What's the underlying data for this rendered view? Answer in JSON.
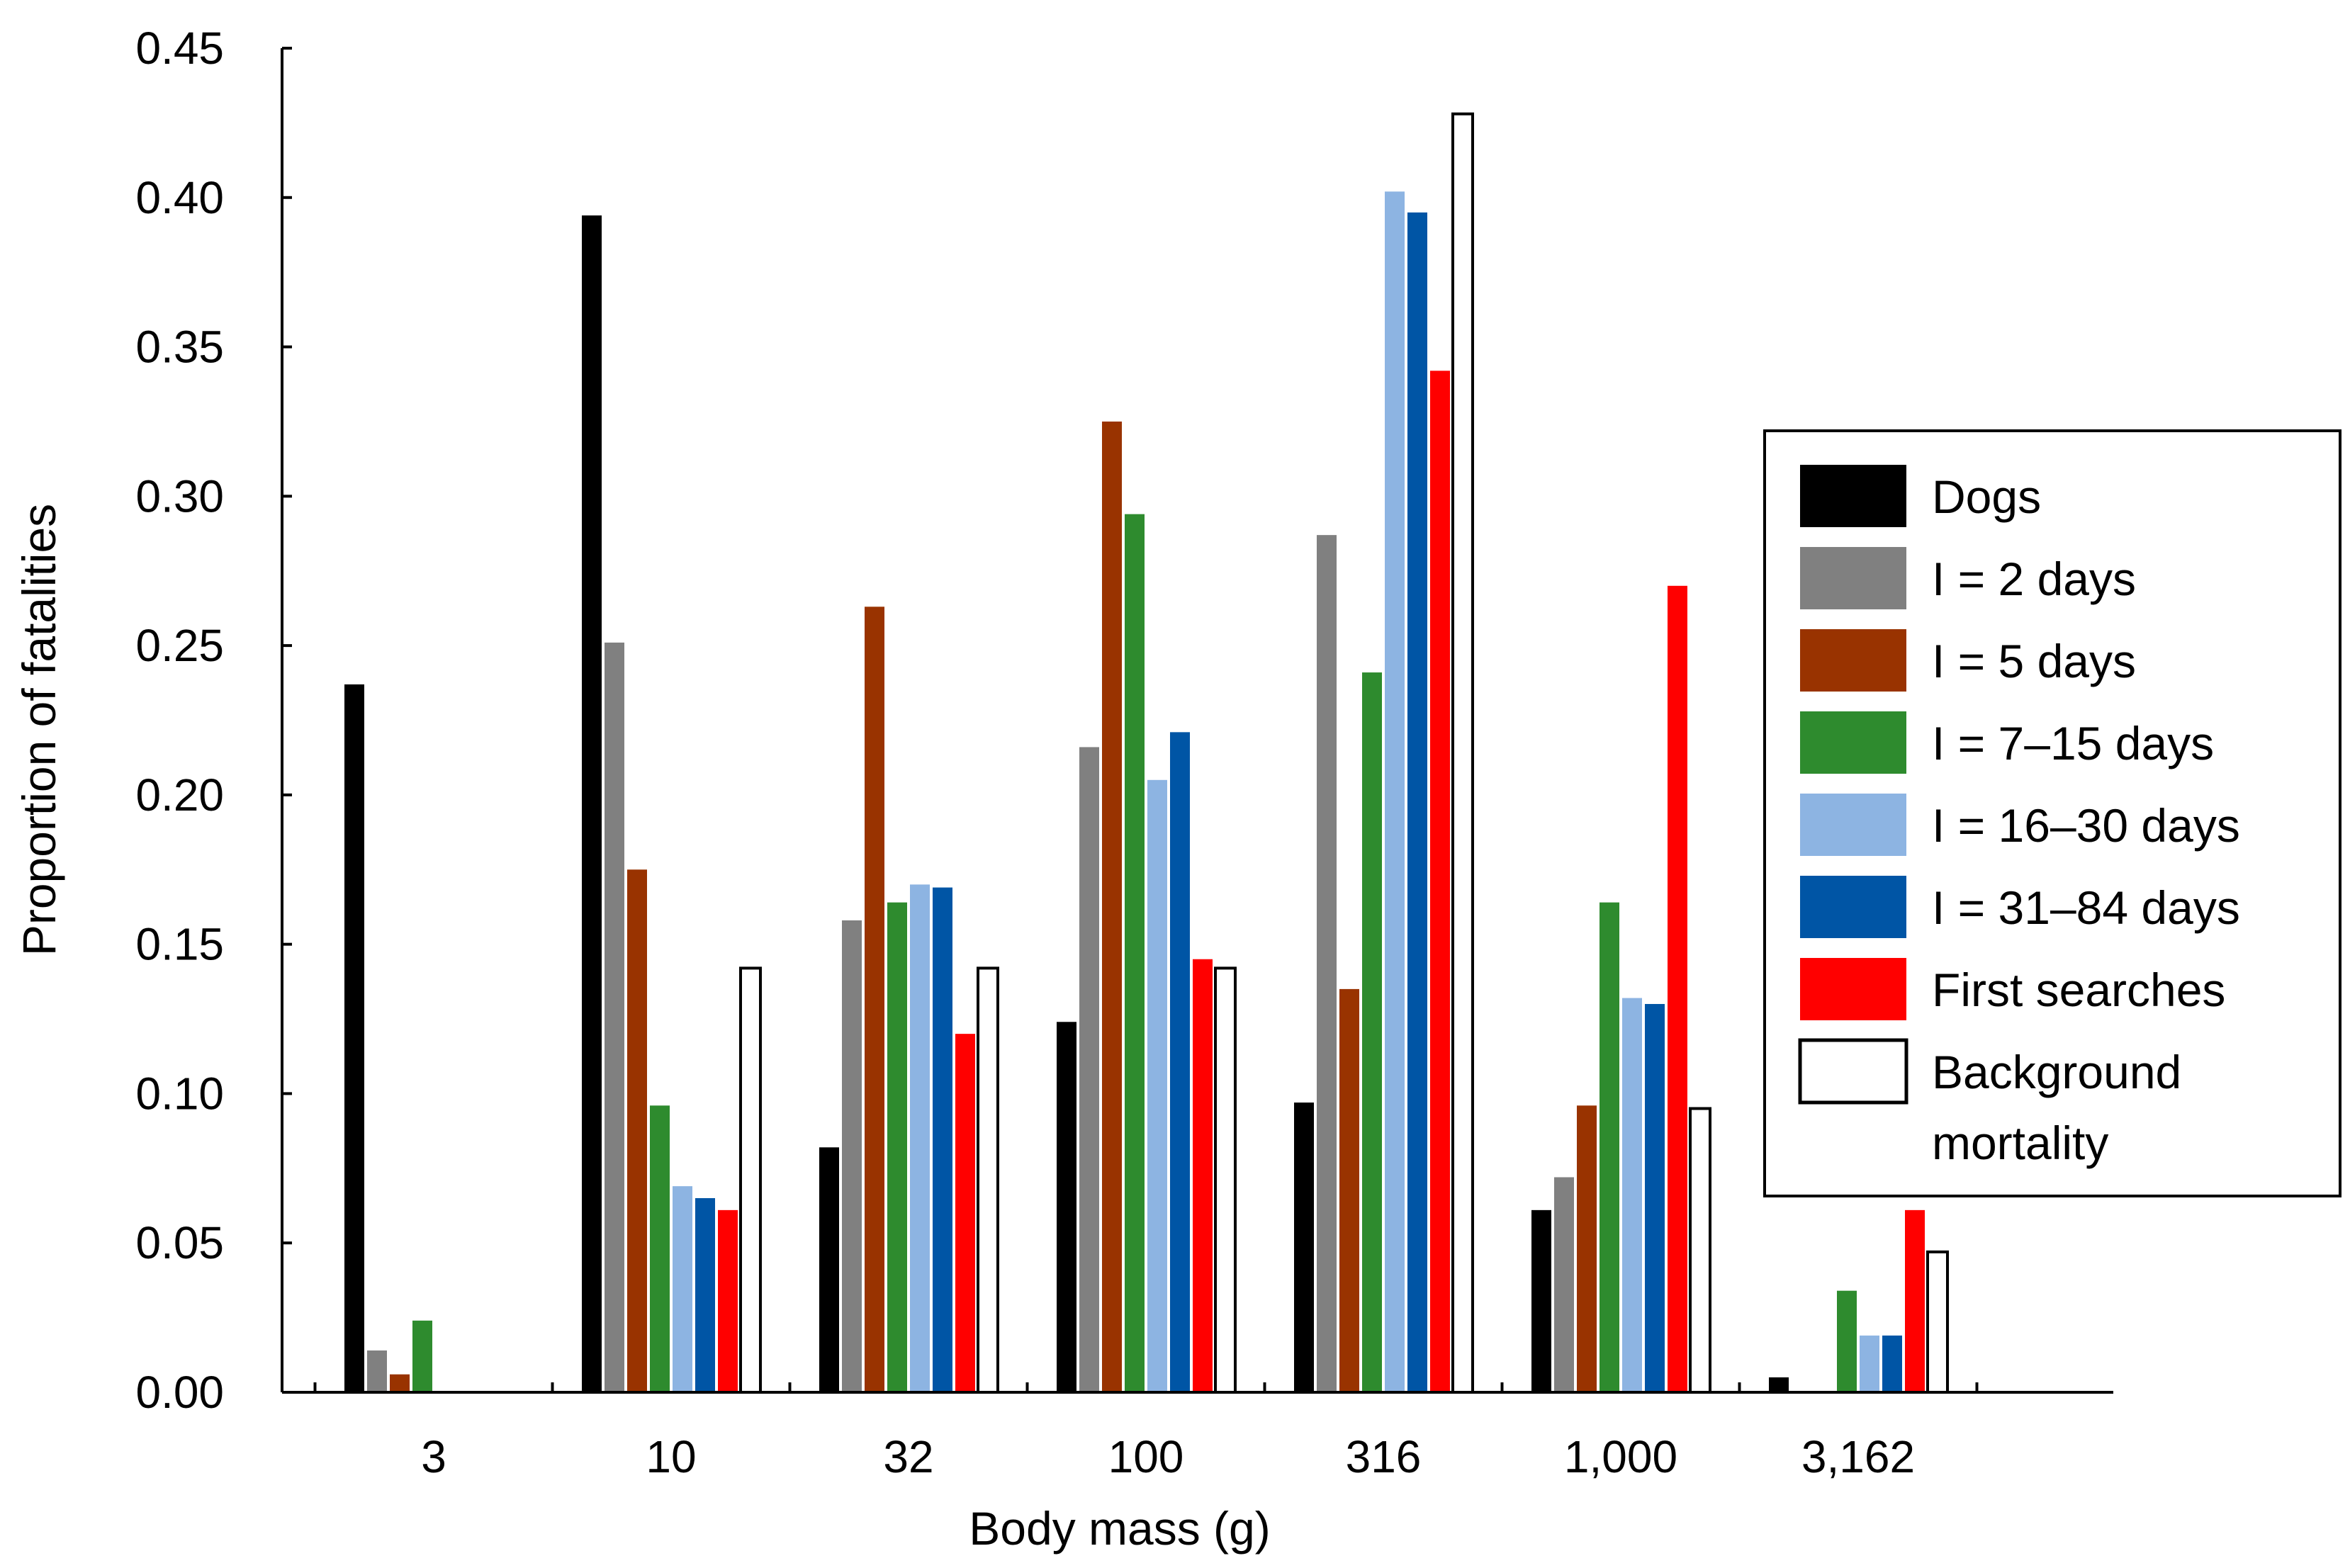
{
  "chart_data": {
    "type": "bar",
    "title": "",
    "xlabel": "Body mass (g)",
    "ylabel": "Proportion of fatalities",
    "ylim": [
      0,
      0.45
    ],
    "yticks": [
      "0.00",
      "0.05",
      "0.10",
      "0.15",
      "0.20",
      "0.25",
      "0.30",
      "0.35",
      "0.40",
      "0.45"
    ],
    "categories": [
      "3",
      "10",
      "32",
      "100",
      "316",
      "1,000",
      "3,162"
    ],
    "legend_position": "right",
    "series": [
      {
        "name": "Dogs",
        "color": "#000000",
        "values": [
          0.237,
          0.394,
          0.082,
          0.124,
          0.097,
          0.061,
          0.005
        ]
      },
      {
        "name": "I = 2 days",
        "color": "#808080",
        "values": [
          0.014,
          0.251,
          0.158,
          0.216,
          0.287,
          0.072,
          0.0
        ]
      },
      {
        "name": "I = 5 days",
        "color": "#993300",
        "values": [
          0.006,
          0.175,
          0.263,
          0.325,
          0.135,
          0.096,
          0.0
        ]
      },
      {
        "name": "I = 7–15 days",
        "color": "#2E8B2E",
        "values": [
          0.024,
          0.096,
          0.164,
          0.294,
          0.241,
          0.164,
          0.034
        ]
      },
      {
        "name": "I = 16–30 days",
        "color": "#8DB4E2",
        "values": [
          0.0,
          0.069,
          0.17,
          0.205,
          0.402,
          0.132,
          0.019
        ]
      },
      {
        "name": "I = 31–84 days",
        "color": "#0055A5",
        "values": [
          0.0,
          0.065,
          0.169,
          0.221,
          0.395,
          0.13,
          0.019
        ]
      },
      {
        "name": "First searches",
        "color": "#FF0000",
        "values": [
          0.0,
          0.061,
          0.12,
          0.145,
          0.342,
          0.27,
          0.061
        ]
      },
      {
        "name": "Background",
        "name_line2": "mortality",
        "color": "#FFFFFF",
        "values": [
          0.0,
          0.142,
          0.142,
          0.142,
          0.428,
          0.095,
          0.047
        ]
      }
    ]
  }
}
